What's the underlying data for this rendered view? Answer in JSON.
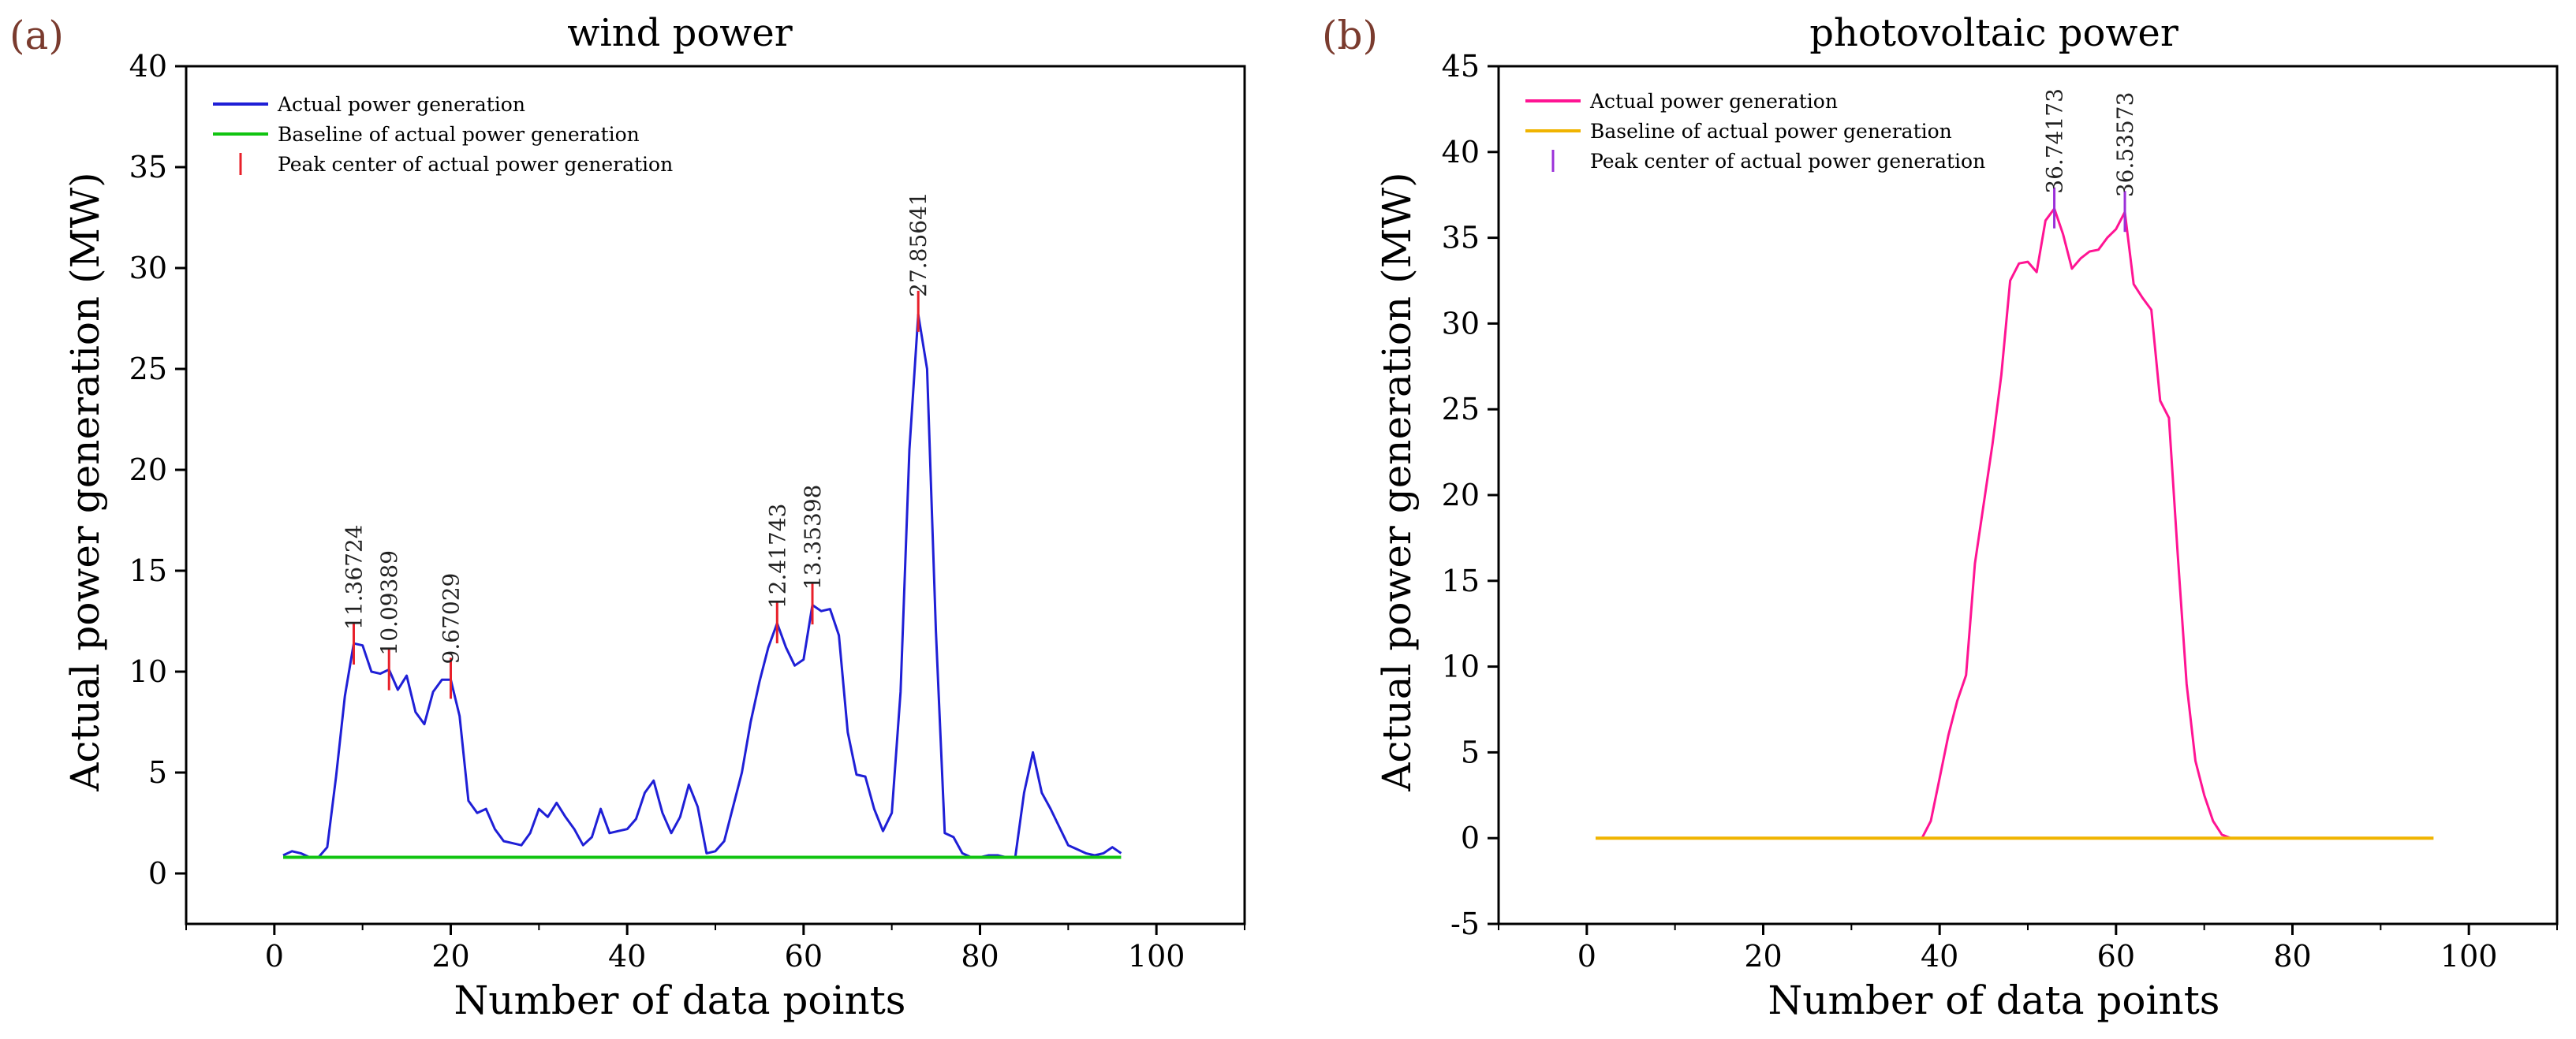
{
  "chart_data": [
    {
      "type": "line",
      "panel_label": "(a)",
      "title": "wind power",
      "xlabel": "Number of data points",
      "ylabel": "Actual power generation (MW)",
      "xlim": [
        -10,
        110
      ],
      "ylim": [
        -2.5,
        40
      ],
      "xticks": [
        0,
        20,
        40,
        60,
        80,
        100
      ],
      "yticks": [
        0,
        5,
        10,
        15,
        20,
        25,
        30,
        35,
        40
      ],
      "legend": [
        {
          "label": "Actual power generation",
          "color": "#1f1fd6",
          "marker": "line"
        },
        {
          "label": "Baseline of actual power generation",
          "color": "#11c411",
          "marker": "line"
        },
        {
          "label": "Peak center of actual power generation",
          "color": "#e8202a",
          "marker": "tick"
        }
      ],
      "series": [
        {
          "name": "Actual power generation",
          "color": "#1f1fd6",
          "x": [
            1,
            2,
            3,
            4,
            5,
            6,
            7,
            8,
            9,
            10,
            11,
            12,
            13,
            14,
            15,
            16,
            17,
            18,
            19,
            20,
            21,
            22,
            23,
            24,
            25,
            26,
            27,
            28,
            29,
            30,
            31,
            32,
            33,
            34,
            35,
            36,
            37,
            38,
            39,
            40,
            41,
            42,
            43,
            44,
            45,
            46,
            47,
            48,
            49,
            50,
            51,
            52,
            53,
            54,
            55,
            56,
            57,
            58,
            59,
            60,
            61,
            62,
            63,
            64,
            65,
            66,
            67,
            68,
            69,
            70,
            71,
            72,
            73,
            74,
            75,
            76,
            77,
            78,
            79,
            80,
            81,
            82,
            83,
            84,
            85,
            86,
            87,
            88,
            89,
            90,
            91,
            92,
            93,
            94,
            95,
            96
          ],
          "y": [
            0.9,
            1.1,
            1.0,
            0.8,
            0.8,
            1.3,
            4.8,
            8.8,
            11.4,
            11.3,
            10.0,
            9.9,
            10.1,
            9.1,
            9.8,
            8.0,
            7.4,
            9.0,
            9.6,
            9.6,
            7.8,
            3.6,
            3.0,
            3.2,
            2.2,
            1.6,
            1.5,
            1.4,
            2.0,
            3.2,
            2.8,
            3.5,
            2.8,
            2.2,
            1.4,
            1.8,
            3.2,
            2.0,
            2.1,
            2.2,
            2.7,
            4.0,
            4.6,
            3.0,
            2.0,
            2.8,
            4.4,
            3.3,
            1.0,
            1.1,
            1.6,
            3.3,
            5.0,
            7.5,
            9.5,
            11.2,
            12.4,
            11.2,
            10.3,
            10.6,
            13.3,
            13.0,
            13.1,
            11.8,
            7.0,
            4.9,
            4.8,
            3.2,
            2.1,
            3.0,
            9.0,
            21.0,
            27.7,
            25.0,
            12.0,
            2.0,
            1.8,
            1.0,
            0.8,
            0.8,
            0.9,
            0.9,
            0.8,
            0.8,
            4.0,
            6.0,
            4.0,
            3.2,
            2.3,
            1.4,
            1.2,
            1.0,
            0.9,
            1.0,
            1.3,
            1.0
          ]
        },
        {
          "name": "Baseline of actual power generation",
          "color": "#11c411",
          "x": [
            1,
            96
          ],
          "y": [
            0.8,
            0.8
          ]
        }
      ],
      "peaks": [
        {
          "x": 9,
          "y": 11.36724,
          "label": "11.36724"
        },
        {
          "x": 13,
          "y": 10.09389,
          "label": "10.09389"
        },
        {
          "x": 20,
          "y": 9.67029,
          "label": "9.67029"
        },
        {
          "x": 57,
          "y": 12.41743,
          "label": "12.41743"
        },
        {
          "x": 61,
          "y": 13.35398,
          "label": "13.35398"
        },
        {
          "x": 73,
          "y": 27.85641,
          "label": "27.85641"
        }
      ],
      "peak_color": "#e8202a"
    },
    {
      "type": "line",
      "panel_label": "(b)",
      "title": "photovoltaic power",
      "xlabel": "Number of data points",
      "ylabel": "Actual power generation (MW)",
      "xlim": [
        -10,
        110
      ],
      "ylim": [
        -5,
        45
      ],
      "xticks": [
        0,
        20,
        40,
        60,
        80,
        100
      ],
      "yticks": [
        -5,
        0,
        5,
        10,
        15,
        20,
        25,
        30,
        35,
        40,
        45
      ],
      "legend": [
        {
          "label": "Actual power generation",
          "color": "#ff1493",
          "marker": "line"
        },
        {
          "label": "Baseline of actual power generation",
          "color": "#f0b400",
          "marker": "line"
        },
        {
          "label": "Peak center of actual power generation",
          "color": "#9b30d9",
          "marker": "tick"
        }
      ],
      "series": [
        {
          "name": "Actual power generation",
          "color": "#ff1493",
          "x": [
            38,
            39,
            40,
            41,
            42,
            43,
            44,
            45,
            46,
            47,
            48,
            49,
            50,
            51,
            52,
            53,
            54,
            55,
            56,
            57,
            58,
            59,
            60,
            61,
            62,
            63,
            64,
            65,
            66,
            67,
            68,
            69,
            70,
            71,
            72,
            73
          ],
          "y": [
            0,
            1.0,
            3.5,
            6.0,
            8.0,
            9.5,
            16.0,
            19.5,
            23.0,
            27.0,
            32.5,
            33.5,
            33.6,
            33.0,
            36.0,
            36.7,
            35.2,
            33.2,
            33.8,
            34.2,
            34.3,
            35.0,
            35.5,
            36.5,
            32.3,
            31.5,
            30.8,
            25.5,
            24.5,
            16.5,
            9.0,
            4.5,
            2.5,
            1.0,
            0.2,
            0
          ]
        },
        {
          "name": "Baseline of actual power generation",
          "color": "#f0b400",
          "x": [
            1,
            96
          ],
          "y": [
            0,
            0
          ]
        }
      ],
      "peaks": [
        {
          "x": 53,
          "y": 36.74173,
          "label": "36.74173"
        },
        {
          "x": 61,
          "y": 36.53573,
          "label": "36.53573"
        }
      ],
      "peak_color": "#9b30d9"
    }
  ]
}
